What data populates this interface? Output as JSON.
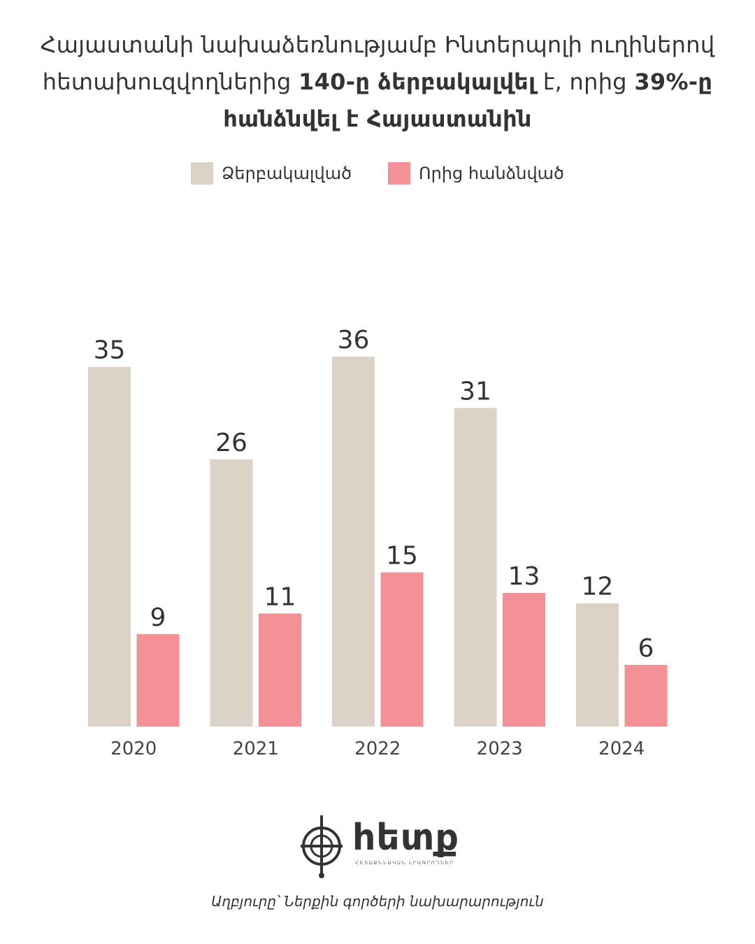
{
  "title": {
    "part1": "Հայաստանի նախաձեռնությամբ Ինտերպոլի ուղիներով հետախուզվողներից ",
    "bold1": "140-ը ձերբակալվել",
    "part2": " է, որից ",
    "bold2": "39%-ը հանձնվել է Հայաստանին"
  },
  "colors": {
    "arrested": "#dcd3c6",
    "extradited": "#f39196",
    "text": "#333333"
  },
  "logo": {
    "text": "հետք",
    "subtext": "ՀԵՏԱՔՆՆԱԿԱՆ ԼՐԱԳՐՈՂՆԵՐ"
  },
  "source": "Աղբյուրը՝ Ներքին գործերի նախարարություն",
  "chart_data": {
    "type": "bar",
    "categories": [
      "2020",
      "2021",
      "2022",
      "2023",
      "2024"
    ],
    "series": [
      {
        "name": "Ձերբակալված",
        "values": [
          35,
          26,
          36,
          31,
          12
        ]
      },
      {
        "name": "Որից հանձնված",
        "values": [
          9,
          11,
          15,
          13,
          6
        ]
      }
    ],
    "ylim": [
      0,
      36
    ],
    "grid": false,
    "legend_position": "top-center",
    "data_labels": true
  }
}
